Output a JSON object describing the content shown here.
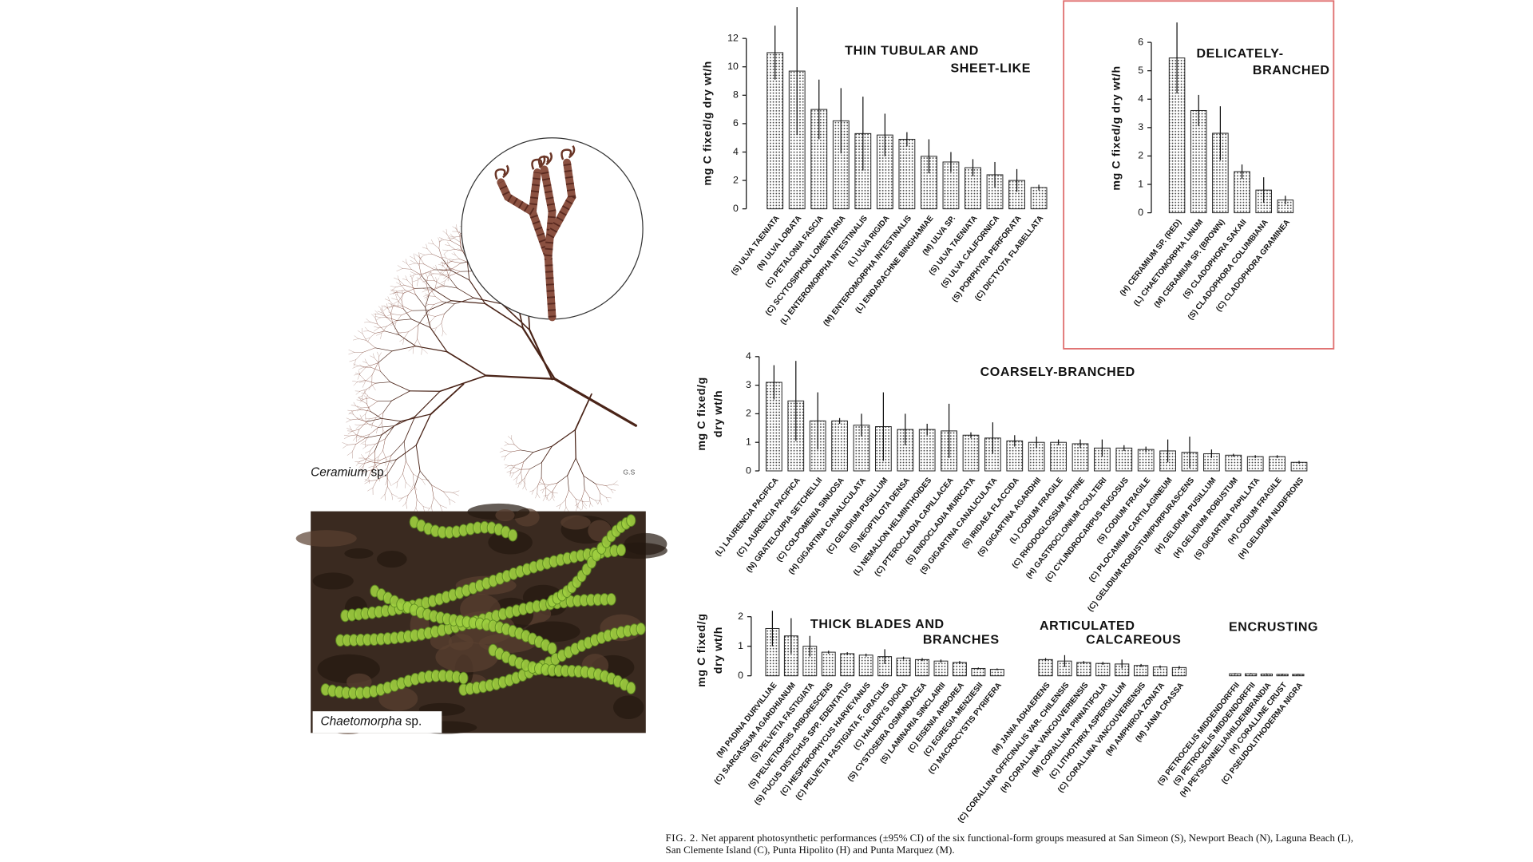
{
  "images": [
    {
      "genus": "Ceramium",
      "suffix": "sp.",
      "signature": "G.S"
    },
    {
      "genus": "Chaetomorpha",
      "suffix": "sp."
    }
  ],
  "chart_data": [
    {
      "type": "bar",
      "title": [
        "THIN TUBULAR AND",
        "SHEET-LIKE"
      ],
      "ylabel": "mg C fixed/g dry wt/h",
      "categories": [
        "(S) ULVA TAENIATA",
        "(N) ULVA LOBATA",
        "(C) PETALONIA FASCIA",
        "(C) SCYTOSIPHON LOMENTARIA",
        "(L) ENTEROMORPHA INTESTINALIS",
        "(L) ULVA RIGIDA",
        "(M) ENTEROMORPHA INTESTINALIS",
        "(L) ENDARACHNE BINGHAMIAE",
        "(M) ULVA SP.",
        "(S) ULVA TAENIATA",
        "(S) ULVA CALIFORNICA",
        "(S) PORPHYRA PERFORATA",
        "(C) DICTYOTA FLABELLATA"
      ],
      "values": [
        11.0,
        9.7,
        7.0,
        6.2,
        5.3,
        5.2,
        4.9,
        3.7,
        3.3,
        2.9,
        2.4,
        2.0,
        1.5
      ],
      "errors": [
        1.9,
        4.5,
        2.1,
        2.3,
        2.6,
        1.5,
        0.5,
        1.2,
        0.7,
        0.6,
        0.9,
        0.8,
        0.2
      ],
      "color": "#444444",
      "ylim": [
        0,
        12
      ],
      "yticks": [
        0,
        2,
        4,
        6,
        8,
        10,
        12
      ]
    },
    {
      "type": "bar",
      "title": [
        "DELICATELY-",
        "BRANCHED"
      ],
      "ylabel": "mg C fixed/g dry wt/h",
      "categories": [
        "(H) CERAMIUM SP. (RED)",
        "(L) CHAETOMORPHA LINUM",
        "(M) CERAMIUM SP. (BROWN)",
        "(S) CLADOPHORA SAKAII",
        "(S) CLADOPHORA COLUMBIANA",
        "(C) CLADOPHORA GRAMINEA"
      ],
      "values": [
        5.45,
        3.6,
        2.8,
        1.45,
        0.8,
        0.45
      ],
      "errors": [
        1.25,
        0.55,
        0.95,
        0.25,
        0.45,
        0.15
      ],
      "color": "#444444",
      "ylim": [
        0,
        6
      ],
      "yticks": [
        0,
        1,
        2,
        3,
        4,
        5,
        6
      ]
    },
    {
      "type": "bar",
      "title": [
        "COARSELY-BRANCHED"
      ],
      "ylabel": [
        "mg C fixed/g",
        "dry wt/h"
      ],
      "categories": [
        "(L) LAURENCIA PACIFICA",
        "(C) LAURENCIA PACIFICA",
        "(N) GRATELOUPIA SETCHELLII",
        "(C) COLPOMENIA SINUOSA",
        "(H) GIGARTINA CANALICULATA",
        "(C) GELIDIUM PUSILLUM",
        "(S) NEOPTILOTA DENSA",
        "(L) NEMALION HELMINTHOIDES",
        "(C) PTEROCLADIA CAPILLACEA",
        "(S) ENDOCLADIA MURICATA",
        "(S) GIGARTINA CANALICULATA",
        "(S) IRIDAEA FLACCIDA",
        "(S) GIGARTINA AGARDHII",
        "(L) CODIUM FRAGILE",
        "(C) RHODOGLOSSUM AFFINE",
        "(H) GASTROCLONIUM COULTERI",
        "(C) CYLINDROCARPUS RUGOSUS",
        "(S) CODIUM FRAGILE",
        "(C) PLOCAMIUM CARTILAGINEUM",
        "(C) GELIDIUM ROBUSTUM/PURPURASCENS",
        "(H) GELIDIUM PUSILLUM",
        "(H) GELIDIUM ROBUSTUM",
        "(S) GIGARTINA PAPILLATA",
        "(H) CODIUM FRAGILE",
        "(H) GELIDIUM NUDIFRONS"
      ],
      "values": [
        3.1,
        2.45,
        1.75,
        1.75,
        1.6,
        1.55,
        1.45,
        1.45,
        1.4,
        1.25,
        1.15,
        1.05,
        1.0,
        1.0,
        0.95,
        0.8,
        0.8,
        0.75,
        0.7,
        0.65,
        0.6,
        0.55,
        0.5,
        0.5,
        0.3
      ],
      "errors": [
        0.6,
        1.4,
        1.0,
        0.1,
        0.4,
        1.2,
        0.55,
        0.2,
        0.95,
        0.1,
        0.55,
        0.2,
        0.2,
        0.1,
        0.15,
        0.3,
        0.1,
        0.1,
        0.4,
        0.55,
        0.15,
        0.05,
        0.05,
        0.05,
        0.05
      ],
      "color": "#444444",
      "ylim": [
        0,
        4
      ],
      "yticks": [
        0,
        1,
        2,
        3,
        4
      ]
    },
    {
      "type": "bar",
      "title": [
        "THICK BLADES AND",
        "BRANCHES"
      ],
      "ylabel": [
        "mg C fixed/g",
        "dry wt/h"
      ],
      "categories": [
        "(M) PADINA DURVILLIAE",
        "(C) SARGASSUM AGARDHIANUM",
        "(S) PELVETIA FASTIGIATA",
        "(S) PELVETIOPSIS ARBORESCENS",
        "(S) FUCUS DISTICHUS SPP. EDENTATUS",
        "(C) HESPEROPHYCUS HARVEYANUS",
        "(C) PELVETIA FASTIGIATA F. GRACILIS",
        "(C) HALIDRYS DIOICA",
        "(S) CYSTOSEIRA OSMUNDACEA",
        "(S) LAMINARIA SINCLAIRII",
        "(C) EISENIA ARBOREA",
        "(C) EGREGIA MENZIESII",
        "(C) MACROCYSTIS PYRIFERA"
      ],
      "values": [
        1.6,
        1.35,
        1.0,
        0.8,
        0.75,
        0.7,
        0.65,
        0.6,
        0.55,
        0.5,
        0.45,
        0.25,
        0.22
      ],
      "errors": [
        0.6,
        0.6,
        0.35,
        0.05,
        0.05,
        0.05,
        0.25,
        0.05,
        0.05,
        0.05,
        0.05,
        0.03,
        0.03
      ],
      "color": "#444444",
      "ylim": [
        0,
        2
      ],
      "yticks": [
        0,
        1,
        2
      ]
    },
    {
      "type": "bar",
      "title": [
        "ARTICULATED",
        "CALCAREOUS"
      ],
      "categories": [
        "(M) JANIA ADHAERENS",
        "(C) CORALLINA OFFICINALIS VAR. CHILENSIS",
        "(H) CORALLINA VANCOUVERIENSIS",
        "(M) CORALLINA PINNATIFOLIA",
        "(C) LITHOTHRIX ASPERGILLUM",
        "(C) CORALLINA VANCOUVERIENSIS",
        "(M) AMPHIROA ZONATA",
        "(M) JANIA CRASSA"
      ],
      "values": [
        0.55,
        0.5,
        0.45,
        0.42,
        0.4,
        0.35,
        0.3,
        0.28
      ],
      "errors": [
        0.05,
        0.2,
        0.05,
        0.05,
        0.15,
        0.05,
        0.05,
        0.05
      ],
      "color": "#444444",
      "ylim": [
        0,
        2
      ]
    },
    {
      "type": "bar",
      "title": [
        "ENCRUSTING"
      ],
      "categories": [
        "(S) PETROCELIS MIDDENDORFFII",
        "(S) PETROCELIS MIDDENDORFFII",
        "(H) PEYSSONNELIA/HILDENBRANDIA",
        "(H) CORALLINE CRUST",
        "(C) PSEUDOLITHODERMA NIGRA"
      ],
      "values": [
        0.07,
        0.07,
        0.06,
        0.05,
        0.05
      ],
      "errors": [
        0.02,
        0.02,
        0.02,
        0.02,
        0.02
      ],
      "color": "#444444",
      "ylim": [
        0,
        2
      ]
    }
  ],
  "caption": {
    "label": "FIG. 2.",
    "text": "Net apparent photosynthetic performances (±95% CI) of the six functional-form groups measured at San Simeon (S), Newport Beach (N), Laguna Beach (L), San Clemente Island (C), Punta Hipolito (H) and Punta Marquez (M)."
  }
}
